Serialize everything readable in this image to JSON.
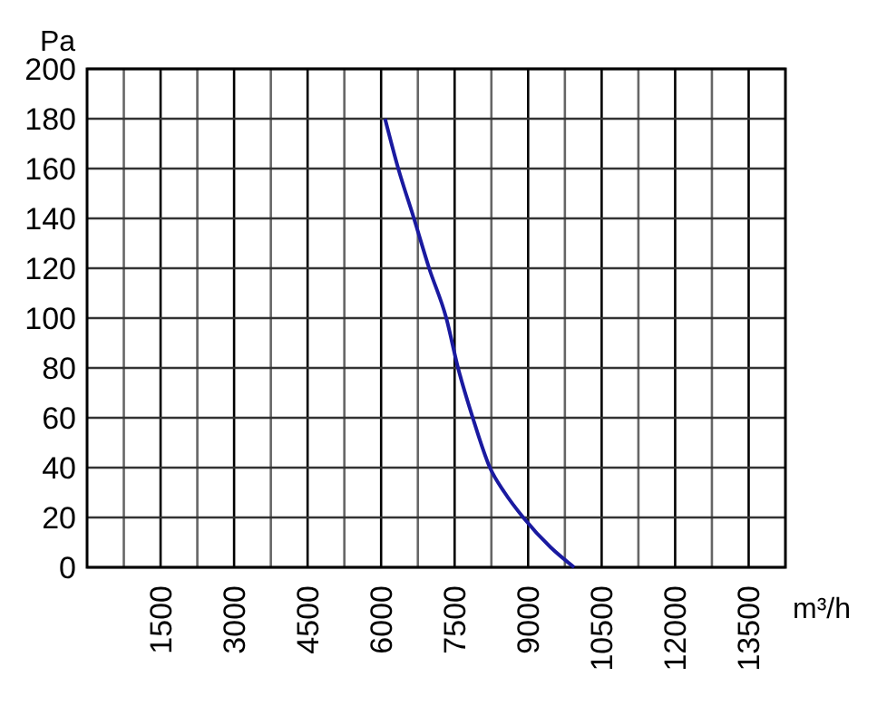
{
  "chart_data": {
    "type": "line",
    "xlabel": "m³/h",
    "ylabel": "Pa",
    "xlim": [
      0,
      14250
    ],
    "ylim": [
      0,
      200
    ],
    "xticks": [
      {
        "value": 750,
        "label": null
      },
      1500,
      {
        "value": 2250,
        "label": null
      },
      3000,
      {
        "value": 3750,
        "label": null
      },
      4500,
      {
        "value": 5250,
        "label": null
      },
      6000,
      {
        "value": 6750,
        "label": null
      },
      7500,
      {
        "value": 8250,
        "label": null
      },
      9000,
      {
        "value": 9750,
        "label": null
      },
      10500,
      {
        "value": 11250,
        "label": null
      },
      12000,
      {
        "value": 12750,
        "label": null
      },
      13500
    ],
    "yticks": [
      0,
      20,
      40,
      60,
      80,
      100,
      120,
      140,
      160,
      180,
      200
    ],
    "grid": true,
    "marker": "none",
    "line_style": "solid",
    "series": [
      {
        "color": "#1a1aa0",
        "x": [
          6080,
          6350,
          6670,
          6980,
          7330,
          7570,
          7870,
          8220,
          8520,
          8900,
          9460,
          9940
        ],
        "values": [
          180,
          160,
          140,
          120,
          100,
          80,
          60,
          40,
          30,
          20,
          8,
          0
        ]
      }
    ]
  }
}
